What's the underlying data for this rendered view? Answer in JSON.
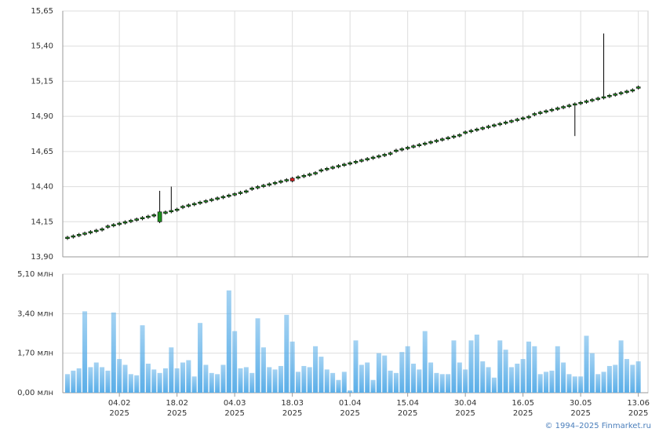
{
  "chart_data": [
    {
      "type": "candlestick",
      "open": [
        14.03,
        14.04,
        14.05,
        14.06,
        14.07,
        14.08,
        14.09,
        14.11,
        14.12,
        14.13,
        14.14,
        14.15,
        14.16,
        14.17,
        14.18,
        14.19,
        14.15,
        14.21,
        14.22,
        14.23,
        14.25,
        14.26,
        14.27,
        14.28,
        14.29,
        14.3,
        14.31,
        14.32,
        14.33,
        14.34,
        14.35,
        14.36,
        14.38,
        14.39,
        14.4,
        14.41,
        14.42,
        14.43,
        14.44,
        14.46,
        14.46,
        14.47,
        14.48,
        14.49,
        14.51,
        14.52,
        14.53,
        14.54,
        14.55,
        14.56,
        14.57,
        14.58,
        14.59,
        14.6,
        14.61,
        14.62,
        14.63,
        14.65,
        14.66,
        14.67,
        14.68,
        14.69,
        14.7,
        14.71,
        14.72,
        14.73,
        14.74,
        14.75,
        14.76,
        14.78,
        14.79,
        14.8,
        14.81,
        14.82,
        14.83,
        14.84,
        14.85,
        14.86,
        14.87,
        14.88,
        14.89,
        14.91,
        14.92,
        14.93,
        14.94,
        14.95,
        14.96,
        14.97,
        14.98,
        14.99,
        15.0,
        15.01,
        15.02,
        15.03,
        15.04,
        15.05,
        15.06,
        15.07,
        15.08,
        15.1
      ],
      "high": [
        14.05,
        14.06,
        14.07,
        14.08,
        14.09,
        14.1,
        14.11,
        14.13,
        14.14,
        14.15,
        14.16,
        14.17,
        14.18,
        14.19,
        14.2,
        14.21,
        14.37,
        14.23,
        14.4,
        14.25,
        14.27,
        14.28,
        14.29,
        14.3,
        14.31,
        14.32,
        14.33,
        14.34,
        14.35,
        14.36,
        14.37,
        14.38,
        14.4,
        14.41,
        14.42,
        14.43,
        14.44,
        14.45,
        14.46,
        14.47,
        14.48,
        14.49,
        14.5,
        14.51,
        14.53,
        14.54,
        14.55,
        14.56,
        14.57,
        14.58,
        14.59,
        14.6,
        14.61,
        14.62,
        14.63,
        14.64,
        14.65,
        14.67,
        14.68,
        14.69,
        14.7,
        14.71,
        14.72,
        14.73,
        14.74,
        14.75,
        14.76,
        14.77,
        14.78,
        14.8,
        14.81,
        14.82,
        14.83,
        14.84,
        14.85,
        14.86,
        14.87,
        14.88,
        14.89,
        14.9,
        14.91,
        14.93,
        14.94,
        14.95,
        14.96,
        14.97,
        14.98,
        14.99,
        15.0,
        15.01,
        15.02,
        15.03,
        15.04,
        15.49,
        15.06,
        15.07,
        15.08,
        15.09,
        15.1,
        15.12
      ],
      "low": [
        14.02,
        14.03,
        14.04,
        14.05,
        14.06,
        14.07,
        14.08,
        14.1,
        14.11,
        14.12,
        14.13,
        14.14,
        14.15,
        14.16,
        14.17,
        14.18,
        14.14,
        14.2,
        14.21,
        14.22,
        14.24,
        14.25,
        14.26,
        14.27,
        14.28,
        14.29,
        14.3,
        14.31,
        14.32,
        14.33,
        14.34,
        14.35,
        14.37,
        14.38,
        14.39,
        14.4,
        14.41,
        14.42,
        14.43,
        14.43,
        14.45,
        14.46,
        14.47,
        14.48,
        14.5,
        14.51,
        14.52,
        14.53,
        14.54,
        14.55,
        14.56,
        14.57,
        14.58,
        14.59,
        14.6,
        14.61,
        14.62,
        14.64,
        14.65,
        14.66,
        14.67,
        14.68,
        14.69,
        14.7,
        14.71,
        14.72,
        14.73,
        14.74,
        14.75,
        14.77,
        14.78,
        14.79,
        14.8,
        14.81,
        14.82,
        14.83,
        14.84,
        14.85,
        14.86,
        14.87,
        14.88,
        14.9,
        14.91,
        14.92,
        14.93,
        14.94,
        14.95,
        14.96,
        14.76,
        14.98,
        14.99,
        15.0,
        15.01,
        15.02,
        15.03,
        15.04,
        15.05,
        15.06,
        15.07,
        15.09
      ],
      "close": [
        14.04,
        14.05,
        14.06,
        14.07,
        14.08,
        14.09,
        14.1,
        14.12,
        14.13,
        14.14,
        14.15,
        14.16,
        14.17,
        14.18,
        14.19,
        14.2,
        14.22,
        14.22,
        14.23,
        14.24,
        14.26,
        14.27,
        14.28,
        14.29,
        14.3,
        14.31,
        14.32,
        14.33,
        14.34,
        14.35,
        14.36,
        14.37,
        14.39,
        14.4,
        14.41,
        14.42,
        14.43,
        14.44,
        14.45,
        14.44,
        14.47,
        14.48,
        14.49,
        14.5,
        14.52,
        14.53,
        14.54,
        14.55,
        14.56,
        14.57,
        14.58,
        14.59,
        14.6,
        14.61,
        14.62,
        14.63,
        14.64,
        14.66,
        14.67,
        14.68,
        14.69,
        14.7,
        14.71,
        14.72,
        14.73,
        14.74,
        14.75,
        14.76,
        14.77,
        14.79,
        14.8,
        14.81,
        14.82,
        14.83,
        14.84,
        14.85,
        14.86,
        14.87,
        14.88,
        14.89,
        14.9,
        14.92,
        14.93,
        14.94,
        14.95,
        14.96,
        14.97,
        14.98,
        14.99,
        15.0,
        15.01,
        15.02,
        15.03,
        15.04,
        15.05,
        15.06,
        15.07,
        15.08,
        15.09,
        15.11
      ],
      "up_color": "#1f8f1f",
      "down_color": "#d42020",
      "wick_color": "#000000",
      "ylim": [
        13.9,
        15.65
      ],
      "yticks": [
        {
          "value": 13.9,
          "label": "13,90"
        },
        {
          "value": 14.15,
          "label": "14,15"
        },
        {
          "value": 14.4,
          "label": "14,40"
        },
        {
          "value": 14.65,
          "label": "14,65"
        },
        {
          "value": 14.9,
          "label": "14,90"
        },
        {
          "value": 15.15,
          "label": "15,15"
        },
        {
          "value": 15.4,
          "label": "15,40"
        },
        {
          "value": 15.65,
          "label": "15,65"
        }
      ],
      "grid": true
    },
    {
      "type": "bar",
      "categories": [
        null,
        null,
        null,
        null,
        null,
        null,
        null,
        null,
        null,
        "04.02\n2025",
        null,
        null,
        null,
        null,
        null,
        null,
        null,
        null,
        null,
        "18.02\n2025",
        null,
        null,
        null,
        null,
        null,
        null,
        null,
        null,
        null,
        "04.03\n2025",
        null,
        null,
        null,
        null,
        null,
        null,
        null,
        null,
        null,
        "18.03\n2025",
        null,
        null,
        null,
        null,
        null,
        null,
        null,
        null,
        null,
        "01.04\n2025",
        null,
        null,
        null,
        null,
        null,
        null,
        null,
        null,
        null,
        "15.04\n2025",
        null,
        null,
        null,
        null,
        null,
        null,
        null,
        null,
        null,
        "30.04\n2025",
        null,
        null,
        null,
        null,
        null,
        null,
        null,
        null,
        null,
        "16.05\n2025",
        null,
        null,
        null,
        null,
        null,
        null,
        null,
        null,
        null,
        "30.05\n2025",
        null,
        null,
        null,
        null,
        null,
        null,
        null,
        null,
        null,
        "13.06\n2025"
      ],
      "values": [
        0.8,
        0.95,
        1.05,
        3.5,
        1.1,
        1.3,
        1.1,
        0.95,
        3.45,
        1.45,
        1.2,
        0.8,
        0.75,
        2.9,
        1.25,
        1.0,
        0.85,
        1.05,
        1.95,
        1.05,
        1.3,
        1.4,
        0.7,
        3.0,
        1.2,
        0.85,
        0.8,
        1.2,
        4.4,
        2.65,
        1.05,
        1.1,
        0.85,
        3.2,
        1.95,
        1.1,
        1.0,
        1.15,
        3.35,
        2.2,
        0.9,
        1.15,
        1.1,
        2.0,
        1.55,
        1.0,
        0.85,
        0.55,
        0.9,
        0.1,
        2.25,
        1.2,
        1.3,
        0.55,
        1.7,
        1.6,
        0.95,
        0.85,
        1.75,
        2.0,
        1.25,
        1.0,
        2.65,
        1.3,
        0.85,
        0.8,
        0.8,
        2.25,
        1.3,
        1.0,
        2.25,
        2.5,
        1.35,
        1.1,
        0.65,
        2.25,
        1.85,
        1.1,
        1.25,
        1.45,
        2.2,
        2.0,
        0.8,
        0.9,
        0.95,
        2.0,
        1.3,
        0.8,
        0.7,
        0.7,
        2.45,
        1.7,
        0.8,
        0.9,
        1.15,
        1.2,
        2.25,
        1.45,
        1.2,
        1.35
      ],
      "color": "#5aaee8",
      "ylim": [
        0,
        5.1
      ],
      "yticks": [
        {
          "value": 0,
          "label": "0,00 млн"
        },
        {
          "value": 1.7,
          "label": "1,70 млн"
        },
        {
          "value": 3.4,
          "label": "3,40 млн"
        },
        {
          "value": 5.1,
          "label": "5,10 млн"
        }
      ],
      "grid": true,
      "credit": "© 1994–2025 Finmarket.ru"
    }
  ]
}
